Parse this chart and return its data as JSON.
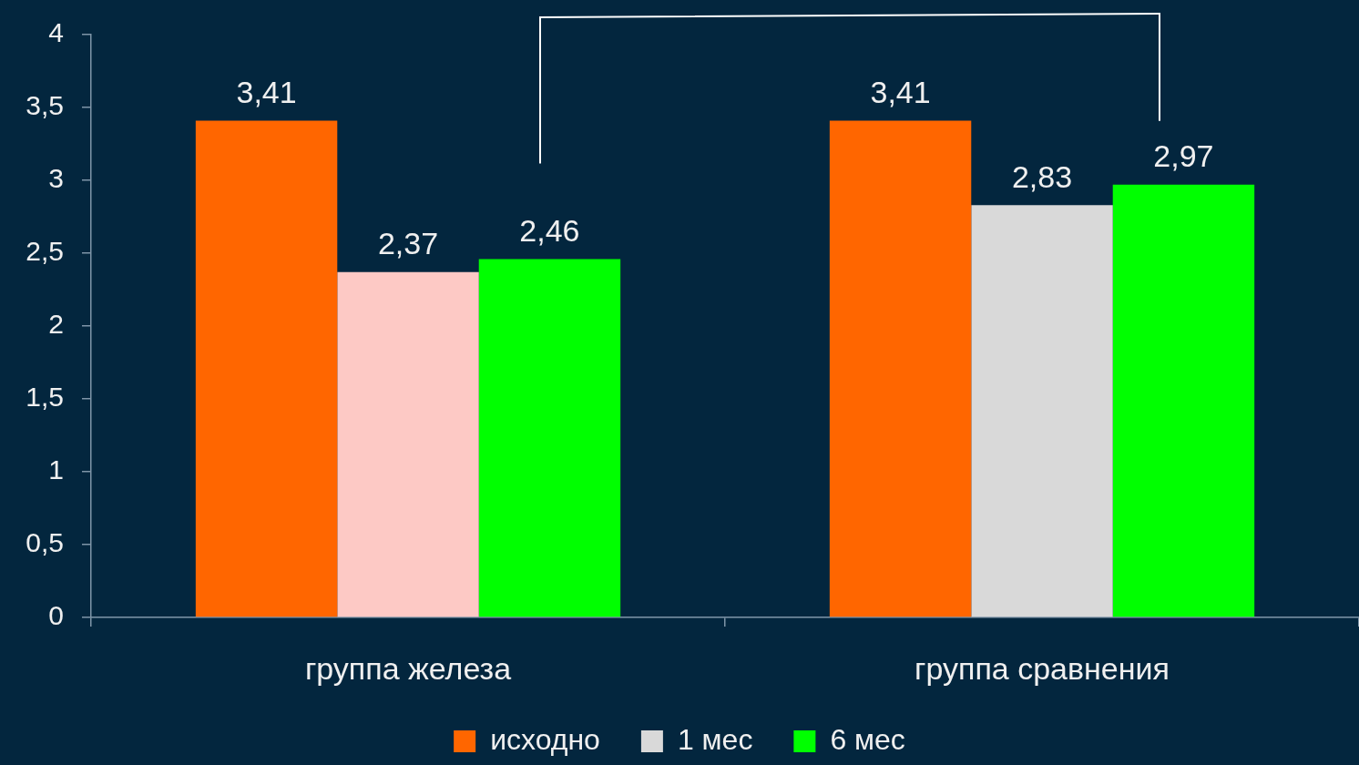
{
  "chart_data": {
    "type": "bar",
    "categories": [
      "группа железа",
      "группа сравнения"
    ],
    "series": [
      {
        "name": "исходно",
        "color": "#ff6600",
        "values": [
          3.41,
          3.41
        ],
        "value_labels": [
          "3,41",
          "3,41"
        ]
      },
      {
        "name": "1 мес",
        "color": "#d9d9d9",
        "colors": [
          "#fdc9c5",
          "#d9d9d9"
        ],
        "values": [
          2.37,
          2.83
        ],
        "value_labels": [
          "2,37",
          "2,83"
        ]
      },
      {
        "name": "6 мес",
        "color": "#00ff00",
        "values": [
          2.46,
          2.97
        ],
        "value_labels": [
          "2,46",
          "2,97"
        ]
      }
    ],
    "ylim": [
      0,
      4
    ],
    "yticks": [
      0,
      {
        "value": 0.5,
        "label": "0,5"
      },
      1,
      {
        "value": 1.5,
        "label": "1,5"
      },
      2,
      {
        "value": 2.5,
        "label": "2,5"
      },
      3,
      {
        "value": 3.5,
        "label": "3,5"
      },
      4
    ],
    "grid": false,
    "legend": "bottom"
  }
}
